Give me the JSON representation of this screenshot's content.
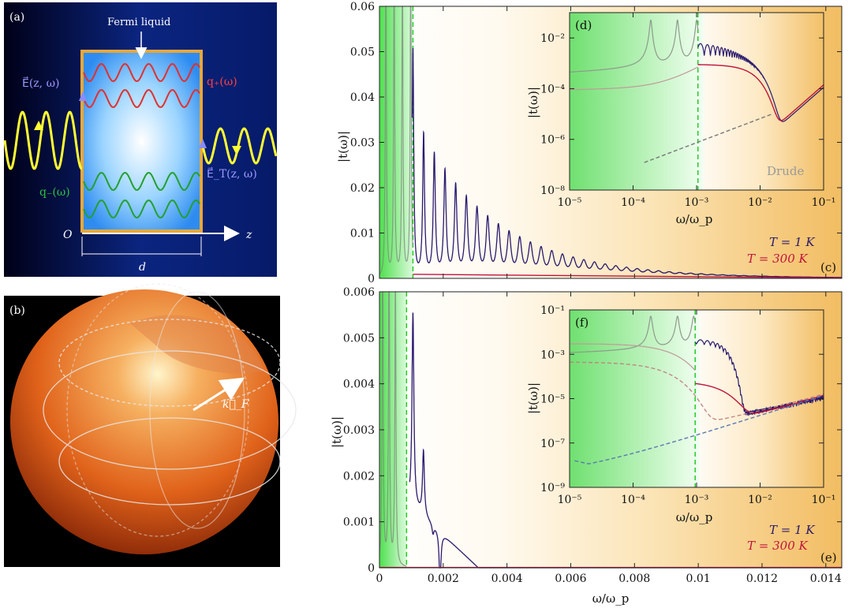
{
  "panels": {
    "a": {
      "label": "(a)",
      "fermi": "Fermi liquid",
      "qplus": "q₊(ω)",
      "qminus": "q₋(ω)",
      "E": "E⃗(z, ω)",
      "ET": "E⃗_T(z, ω)",
      "O": "O",
      "z": "z",
      "d": "d"
    },
    "b": {
      "label": "(b)",
      "kF": "k⃗_F"
    }
  },
  "chart_data": [
    {
      "id": "c",
      "type": "line",
      "panel_label": "(c)",
      "xlim": [
        0,
        0.0145
      ],
      "ylim": [
        0,
        0.06
      ],
      "ylabel": "|t(ω)|",
      "xlabel": "",
      "yticks": [
        0,
        0.01,
        0.02,
        0.03,
        0.04,
        0.05,
        0.06
      ],
      "yticklabels": [
        "0",
        "0.01",
        "0.02",
        "0.03",
        "0.04",
        "0.05",
        "0.06"
      ],
      "xticks": [
        0,
        0.002,
        0.004,
        0.006,
        0.008,
        0.01,
        0.012,
        0.014
      ],
      "show_xticklabels": false,
      "vline": 0.00105,
      "legend": [
        "T = 1 K",
        "T = 300 K"
      ],
      "series": [
        {
          "name": "T = 1 K",
          "color": "#2a1a6e",
          "peak_start": 0.00105,
          "spacing": 0.000335,
          "peak_first": 0.05,
          "peak_second": 0.031,
          "decay": 0.0022,
          "base": 0.0003,
          "baseline_decay": 0.006,
          "damping": 3e-05
        },
        {
          "name": "T = 300 K",
          "color": "#c0143c",
          "flat": 0.0009,
          "tail_at": 0.0145
        },
        {
          "name": "",
          "color": "#7d8b7d",
          "peak_start": 0.0002,
          "spacing": 0.00026,
          "region_end": 0.00105,
          "peak": 0.07,
          "damping": 2e-05
        }
      ],
      "inset": {
        "label": "(d)",
        "xscale": "log",
        "yscale": "log",
        "xlim": [
          1e-05,
          0.1
        ],
        "ylim": [
          1e-08,
          0.1
        ],
        "xticklabels": [
          "10⁻⁵",
          "10⁻⁴",
          "10⁻³",
          "10⁻²",
          "10⁻¹"
        ],
        "yticklabels": [
          "10⁻⁸",
          "10⁻⁶",
          "10⁻⁴",
          "10⁻²"
        ],
        "ylabel": "|t(ω)|",
        "xlabel": "ω/ω_p",
        "annotation": "Drude",
        "vline": 0.00105
      }
    },
    {
      "id": "e",
      "type": "line",
      "panel_label": "(e)",
      "xlim": [
        0,
        0.0145
      ],
      "ylim": [
        0,
        0.006
      ],
      "ylabel": "|t(ω)|",
      "xlabel": "ω/ω_p",
      "yticks": [
        0,
        0.001,
        0.002,
        0.003,
        0.004,
        0.005,
        0.006
      ],
      "yticklabels": [
        "0",
        "0.001",
        "0.002",
        "0.003",
        "0.004",
        "0.005",
        "0.006"
      ],
      "xticks": [
        0,
        0.002,
        0.004,
        0.006,
        0.008,
        0.01,
        0.012,
        0.014
      ],
      "xticklabels": [
        "0",
        "0.002",
        "0.004",
        "0.006",
        "0.008",
        "0.01",
        "0.012",
        "0.014"
      ],
      "show_xticklabels": true,
      "vline": 0.00085,
      "legend": [
        "T = 1 K",
        "T = 300 K"
      ],
      "series": [
        {
          "name": "T = 1 K",
          "color": "#2a1a6e",
          "peaks": [
            [
              0.00105,
              0.0056
            ],
            [
              0.00138,
              0.0028
            ],
            [
              0.00168,
              0.0012
            ],
            [
              0.0019,
              0.0003
            ]
          ],
          "baseline_end": 0.0031
        },
        {
          "name": "T = 300 K",
          "color": "#c0143c",
          "flat": 1e-05
        },
        {
          "name": "",
          "color": "#7d8b7d",
          "peaks": [
            [
              0.0001,
              0.007
            ],
            [
              0.0003,
              0.007
            ],
            [
              0.0005,
              0.0065
            ]
          ],
          "region_end": 0.00085
        }
      ],
      "inset": {
        "label": "(f)",
        "xscale": "log",
        "yscale": "log",
        "xlim": [
          1e-05,
          0.1
        ],
        "ylim": [
          1e-09,
          0.1
        ],
        "xticklabels": [
          "10⁻⁵",
          "10⁻⁴",
          "10⁻³",
          "10⁻²",
          "10⁻¹"
        ],
        "yticklabels": [
          "10⁻⁹",
          "10⁻⁷",
          "10⁻⁵",
          "10⁻³",
          "10⁻¹"
        ],
        "ylabel": "|t(ω)|",
        "xlabel": "ω/ω_p",
        "vline": 0.00095
      }
    }
  ]
}
